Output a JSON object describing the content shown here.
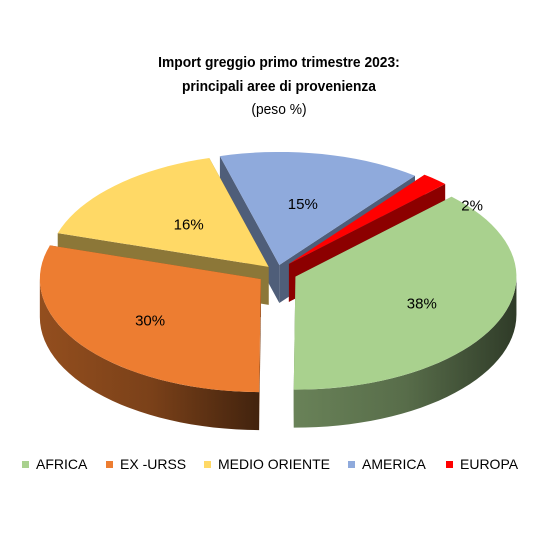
{
  "chart_data": {
    "type": "pie",
    "title_lines": [
      "Import greggio primo trimestre 2023:",
      "principali aree di provenienza",
      "(peso %)"
    ],
    "three_d": true,
    "legend_position": "bottom",
    "categories": [
      "AFRICA",
      "EX -URSS",
      "MEDIO ORIENTE",
      "AMERICA",
      "EUROPA"
    ],
    "values": [
      38,
      30,
      16,
      15,
      2
    ],
    "labels": [
      "38%",
      "30%",
      "16%",
      "15%",
      "2%"
    ],
    "colors": [
      "#A9D18E",
      "#ED7D31",
      "#FFD966",
      "#8FAADC",
      "#FF0000"
    ]
  }
}
